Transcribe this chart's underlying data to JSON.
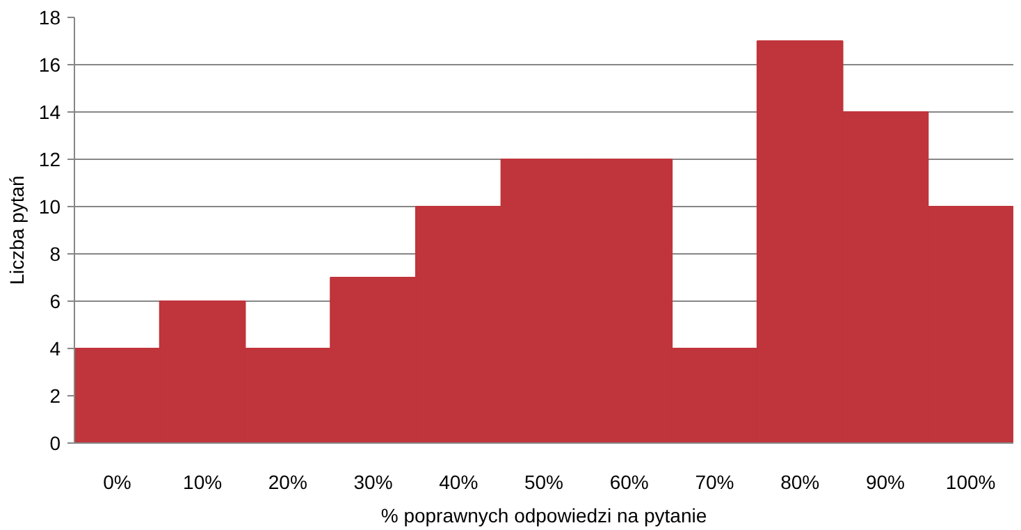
{
  "chart_data": {
    "type": "bar",
    "xlabel": "% poprawnych odpowiedzi na pytanie",
    "ylabel": "Liczba pytań",
    "categories": [
      "0%",
      "10%",
      "20%",
      "30%",
      "40%",
      "50%",
      "60%",
      "70%",
      "80%",
      "90%",
      "100%"
    ],
    "values": [
      4,
      6,
      4,
      7,
      10,
      12,
      12,
      4,
      17,
      14,
      10
    ],
    "color": "#c0343b",
    "ylim": [
      0,
      18
    ],
    "yticks": [
      0,
      2,
      4,
      6,
      8,
      10,
      12,
      14,
      16,
      18
    ],
    "grid": "y"
  }
}
